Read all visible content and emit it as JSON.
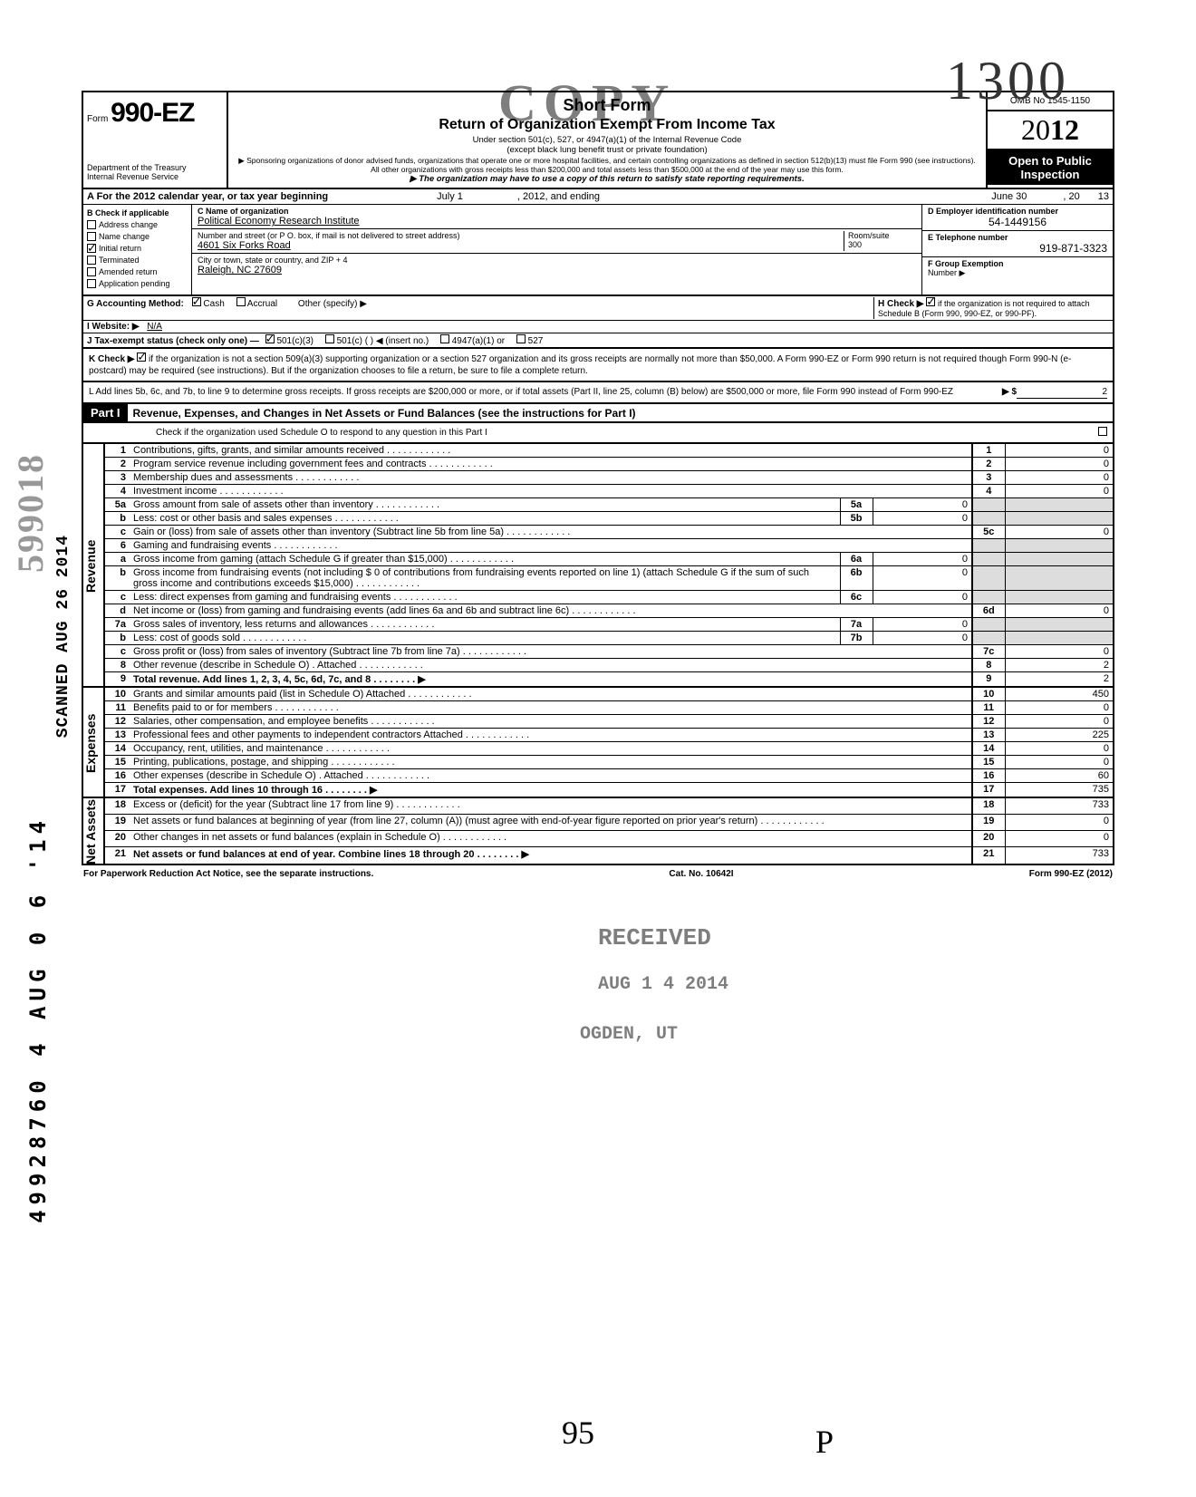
{
  "annotations": {
    "hand_top": "1300",
    "stamp_copy": "COPY",
    "sideways_stamp": "599018",
    "sideways_dln": "49928760 4 AUG 0 6 '14",
    "sideways_scan": "SCANNED AUG 26 2014",
    "received": "RECEIVED",
    "received_date": "AUG 1 4 2014",
    "received_loc": "OGDEN, UT",
    "hand_95": "95",
    "hand_p": "P"
  },
  "header": {
    "form_prefix": "Form",
    "form_number": "990-EZ",
    "dept": "Department of the Treasury",
    "irs": "Internal Revenue Service",
    "title1": "Short Form",
    "title2": "Return of Organization Exempt From Income Tax",
    "sub1": "Under section 501(c), 527, or 4947(a)(1) of the Internal Revenue Code",
    "sub2": "(except black lung benefit trust or private foundation)",
    "sub3": "▶ Sponsoring organizations of donor advised funds, organizations that operate one or more hospital facilities, and certain controlling organizations as defined in section 512(b)(13) must file Form 990 (see instructions). All other organizations with gross receipts less than $200,000 and total assets less than $500,000 at the end of the year may use this form.",
    "sub4": "▶ The organization may have to use a copy of this return to satisfy state reporting requirements.",
    "omb": "OMB No 1545-1150",
    "year_prefix": "20",
    "year_bold": "12",
    "open_pub1": "Open to Public",
    "open_pub2": "Inspection"
  },
  "row_a": {
    "label": "A For the 2012 calendar year, or tax year beginning",
    "begin": "July 1",
    "mid": ", 2012, and ending",
    "end": "June 30",
    "endyr_label": ", 20",
    "endyr": "13"
  },
  "box_b": {
    "label": "B Check if applicable",
    "items": [
      "Address change",
      "Name change",
      "Initial return",
      "Terminated",
      "Amended return",
      "Application pending"
    ],
    "checked_index": 2
  },
  "box_c": {
    "name_label": "C Name of organization",
    "name": "Political Economy Research Institute",
    "street_label": "Number and street (or P O. box, if mail is not delivered to street address)",
    "street": "4601 Six Forks Road",
    "room_label": "Room/suite",
    "room": "300",
    "city_label": "City or town, state or country, and ZIP + 4",
    "city": "Raleigh, NC 27609"
  },
  "box_d": {
    "ein_label": "D Employer identification number",
    "ein": "54-1449156",
    "phone_label": "E Telephone number",
    "phone": "919-871-3323",
    "group_label": "F Group Exemption",
    "group_label2": "Number ▶"
  },
  "row_g": {
    "g_label": "G Accounting Method:",
    "g_cash": "Cash",
    "g_accrual": "Accrual",
    "g_other": "Other (specify) ▶",
    "h_label": "H Check ▶",
    "h_text": "if the organization is not required to attach Schedule B (Form 990, 990-EZ, or 990-PF).",
    "i_label": "I Website: ▶",
    "i_val": "N/A",
    "j_label": "J Tax-exempt status (check only one) —",
    "j_501c3": "501(c)(3)",
    "j_501c": "501(c) (        ) ◀ (insert no.)",
    "j_4947": "4947(a)(1) or",
    "j_527": "527"
  },
  "row_k": {
    "label": "K Check ▶",
    "text": "if the organization is not a section 509(a)(3) supporting organization or a section 527 organization and its gross receipts are normally not more than $50,000. A Form 990-EZ or Form 990 return is not required though Form 990-N (e-postcard) may be required (see instructions). But if the organization chooses to file a return, be sure to file a complete return."
  },
  "row_l": {
    "text": "L Add lines 5b, 6c, and 7b, to line 9 to determine gross receipts. If gross receipts are $200,000 or more, or if total assets (Part II, line 25, column (B) below) are $500,000 or more, file Form 990 instead of Form 990-EZ",
    "arrow": "▶ $",
    "val": "2"
  },
  "part1": {
    "label": "Part I",
    "title": "Revenue, Expenses, and Changes in Net Assets or Fund Balances (see the instructions for Part I)",
    "check_text": "Check if the organization used Schedule O to respond to any question in this Part I"
  },
  "sections": {
    "revenue": "Revenue",
    "expenses": "Expenses",
    "netassets": "Net Assets"
  },
  "lines": [
    {
      "n": "1",
      "desc": "Contributions, gifts, grants, and similar amounts received",
      "ln": "1",
      "val": "0"
    },
    {
      "n": "2",
      "desc": "Program service revenue including government fees and contracts",
      "ln": "2",
      "val": "0"
    },
    {
      "n": "3",
      "desc": "Membership dues and assessments",
      "ln": "3",
      "val": "0"
    },
    {
      "n": "4",
      "desc": "Investment income",
      "ln": "4",
      "val": "0"
    },
    {
      "n": "5a",
      "desc": "Gross amount from sale of assets other than inventory",
      "sub": "5a",
      "subval": "0",
      "shaded": true
    },
    {
      "n": "b",
      "desc": "Less: cost or other basis and sales expenses",
      "sub": "5b",
      "subval": "0",
      "shaded": true
    },
    {
      "n": "c",
      "desc": "Gain or (loss) from sale of assets other than inventory (Subtract line 5b from line 5a)",
      "ln": "5c",
      "val": "0"
    },
    {
      "n": "6",
      "desc": "Gaming and fundraising events",
      "shaded": true
    },
    {
      "n": "a",
      "desc": "Gross income from gaming (attach Schedule G if greater than $15,000)",
      "sub": "6a",
      "subval": "0",
      "shaded": true
    },
    {
      "n": "b",
      "desc": "Gross income from fundraising events (not including  $                 0 of contributions from fundraising events reported on line 1) (attach Schedule G if the sum of such gross income and contributions exceeds $15,000)",
      "sub": "6b",
      "subval": "0",
      "shaded": true
    },
    {
      "n": "c",
      "desc": "Less: direct expenses from gaming and fundraising events",
      "sub": "6c",
      "subval": "0",
      "shaded": true
    },
    {
      "n": "d",
      "desc": "Net income or (loss) from gaming and fundraising events (add lines 6a and 6b and subtract line 6c)",
      "ln": "6d",
      "val": "0"
    },
    {
      "n": "7a",
      "desc": "Gross sales of inventory, less returns and allowances",
      "sub": "7a",
      "subval": "0",
      "shaded": true
    },
    {
      "n": "b",
      "desc": "Less: cost of goods sold",
      "sub": "7b",
      "subval": "0",
      "shaded": true
    },
    {
      "n": "c",
      "desc": "Gross profit or (loss) from sales of inventory (Subtract line 7b from line 7a)",
      "ln": "7c",
      "val": "0"
    },
    {
      "n": "8",
      "desc": "Other revenue (describe in Schedule O) .  Attached",
      "ln": "8",
      "val": "2"
    },
    {
      "n": "9",
      "desc": "Total revenue. Add lines 1, 2, 3, 4, 5c, 6d, 7c, and 8",
      "ln": "9",
      "val": "2",
      "arrow": true,
      "bold": true
    }
  ],
  "exp_lines": [
    {
      "n": "10",
      "desc": "Grants and similar amounts paid (list in Schedule O)   Attached",
      "ln": "10",
      "val": "450"
    },
    {
      "n": "11",
      "desc": "Benefits paid to or for members",
      "ln": "11",
      "val": "0"
    },
    {
      "n": "12",
      "desc": "Salaries, other compensation, and employee benefits",
      "ln": "12",
      "val": "0"
    },
    {
      "n": "13",
      "desc": "Professional fees and other payments to independent contractors   Attached",
      "ln": "13",
      "val": "225"
    },
    {
      "n": "14",
      "desc": "Occupancy, rent, utilities, and maintenance",
      "ln": "14",
      "val": "0"
    },
    {
      "n": "15",
      "desc": "Printing, publications, postage, and shipping",
      "ln": "15",
      "val": "0"
    },
    {
      "n": "16",
      "desc": "Other expenses (describe in Schedule O) .  Attached",
      "ln": "16",
      "val": "60"
    },
    {
      "n": "17",
      "desc": "Total expenses. Add lines 10 through 16",
      "ln": "17",
      "val": "735",
      "arrow": true,
      "bold": true
    }
  ],
  "net_lines": [
    {
      "n": "18",
      "desc": "Excess or (deficit) for the year (Subtract line 17 from line 9)",
      "ln": "18",
      "val": "733"
    },
    {
      "n": "19",
      "desc": "Net assets or fund balances at beginning of year (from line 27, column (A)) (must agree with end-of-year figure reported on prior year's return)",
      "ln": "19",
      "val": "0"
    },
    {
      "n": "20",
      "desc": "Other changes in net assets or fund balances (explain in Schedule O)",
      "ln": "20",
      "val": "0"
    },
    {
      "n": "21",
      "desc": "Net assets or fund balances at end of year. Combine lines 18 through 20",
      "ln": "21",
      "val": "733",
      "arrow": true,
      "bold": true
    }
  ],
  "footer": {
    "left": "For Paperwork Reduction Act Notice, see the separate instructions.",
    "mid": "Cat. No. 10642I",
    "right": "Form 990-EZ (2012)"
  }
}
